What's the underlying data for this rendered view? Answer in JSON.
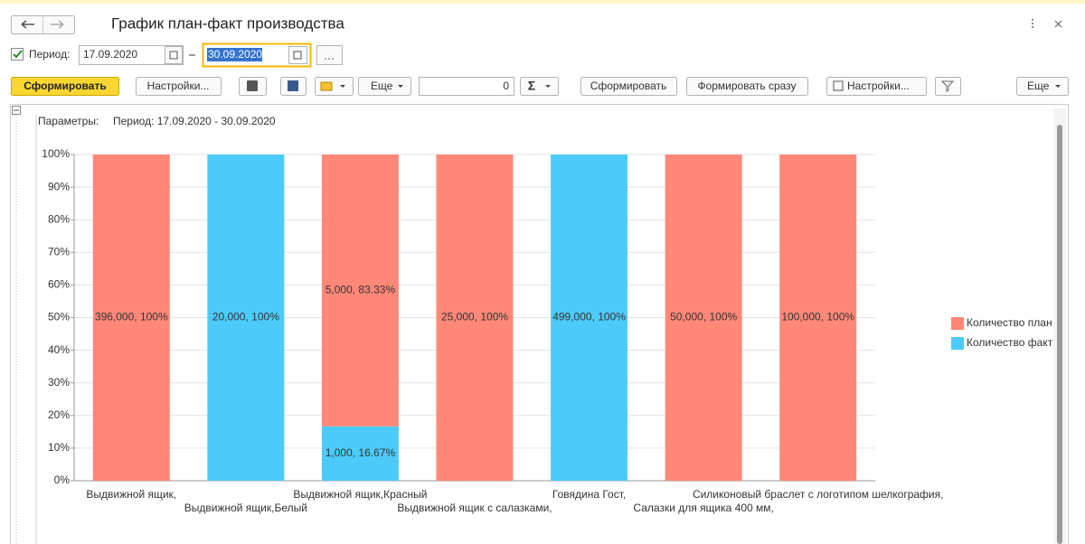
{
  "window": {
    "title": "График план-факт производства"
  },
  "period": {
    "label": "Период:",
    "from": "17.09.2020",
    "to": "30.09.2020"
  },
  "toolbar": {
    "generate": "Сформировать",
    "settings": "Настройки...",
    "more": "Еще",
    "number": 0,
    "sum": "Σ",
    "generate2": "Сформировать",
    "generate_now": "Формировать сразу",
    "settings2": "Настройки...",
    "more2": "Еще"
  },
  "parameters": {
    "label": "Параметры:",
    "value": "Период: 17.09.2020 - 30.09.2020"
  },
  "chart_data": {
    "type": "bar",
    "stacked": true,
    "grid": true,
    "legend": "right",
    "categories": [
      "Выдвижной ящик,",
      "Выдвижной ящик,Белый",
      "Выдвижной ящик,Красный",
      "Выдвижной ящик с салазками,",
      "Говядина Гост,",
      "Салазки для ящика 400 мм,",
      "Силиконовый браслет с логотипом шелкография,"
    ],
    "series": [
      {
        "name": "Количество план",
        "color": "#ff8878",
        "values": [
          100,
          0,
          83.33,
          100,
          0,
          100,
          100
        ],
        "value_labels": [
          "396,000, 100%",
          null,
          "5,000, 83.33%",
          "25,000, 100%",
          null,
          "50,000, 100%",
          "100,000, 100%"
        ]
      },
      {
        "name": "Количество факт",
        "color": "#4ccbfa",
        "values": [
          0,
          100,
          16.67,
          0,
          100,
          0,
          0
        ],
        "value_labels": [
          null,
          "20,000, 100%",
          "1,000, 16.67%",
          null,
          "499,000, 100%",
          null,
          null
        ]
      }
    ],
    "ylim": [
      0,
      100
    ],
    "yticks": [
      {
        "value": 0,
        "label": "0%"
      },
      {
        "value": 10,
        "label": "10%"
      },
      {
        "value": 20,
        "label": "20%"
      },
      {
        "value": 30,
        "label": "30%"
      },
      {
        "value": 40,
        "label": "40%"
      },
      {
        "value": 50,
        "label": "50%"
      },
      {
        "value": 60,
        "label": "60%"
      },
      {
        "value": 70,
        "label": "70%"
      },
      {
        "value": 80,
        "label": "80%"
      },
      {
        "value": 90,
        "label": "90%"
      },
      {
        "value": 100,
        "label": "100%"
      }
    ]
  }
}
